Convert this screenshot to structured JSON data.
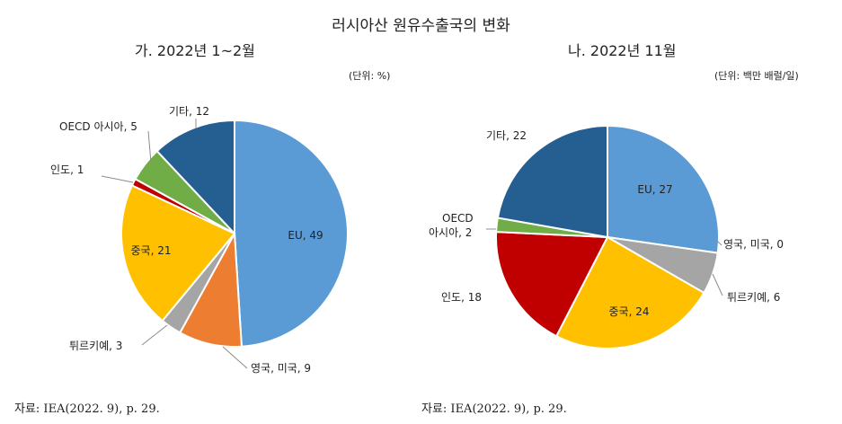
{
  "title": "러시아산 원유수출국의 변화",
  "source_a": "자료: IEA(2022. 9), p. 29.",
  "source_b": "자료: IEA(2022. 9), p. 29.",
  "chart_data": [
    {
      "type": "pie",
      "title": "가. 2022년 1~2월",
      "unit": "(단위: %)",
      "slices": [
        {
          "label": "EU",
          "value": 49,
          "color": "#5b9bd5"
        },
        {
          "label": "영국, 미국",
          "value": 9,
          "color": "#ed7d31"
        },
        {
          "label": "튀르키예",
          "value": 3,
          "color": "#a5a5a5"
        },
        {
          "label": "중국",
          "value": 21,
          "color": "#ffc000"
        },
        {
          "label": "인도",
          "value": 1,
          "color": "#c00000"
        },
        {
          "label": "OECD 아시아",
          "value": 5,
          "color": "#70ad47"
        },
        {
          "label": "기타",
          "value": 12,
          "color": "#255e91"
        }
      ]
    },
    {
      "type": "pie",
      "title": "나. 2022년 11월",
      "unit": "(단위: 백만 배럴/일)",
      "slices": [
        {
          "label": "EU",
          "value": 27,
          "color": "#5b9bd5"
        },
        {
          "label": "영국, 미국",
          "value": 0,
          "color": "#ed7d31"
        },
        {
          "label": "튀르키예",
          "value": 6,
          "color": "#a5a5a5"
        },
        {
          "label": "중국",
          "value": 24,
          "color": "#ffc000"
        },
        {
          "label": "인도",
          "value": 18,
          "color": "#c00000"
        },
        {
          "label": "OECD\n아시아",
          "value": 2,
          "color": "#70ad47"
        },
        {
          "label": "기타",
          "value": 22,
          "color": "#255e91"
        }
      ]
    }
  ]
}
